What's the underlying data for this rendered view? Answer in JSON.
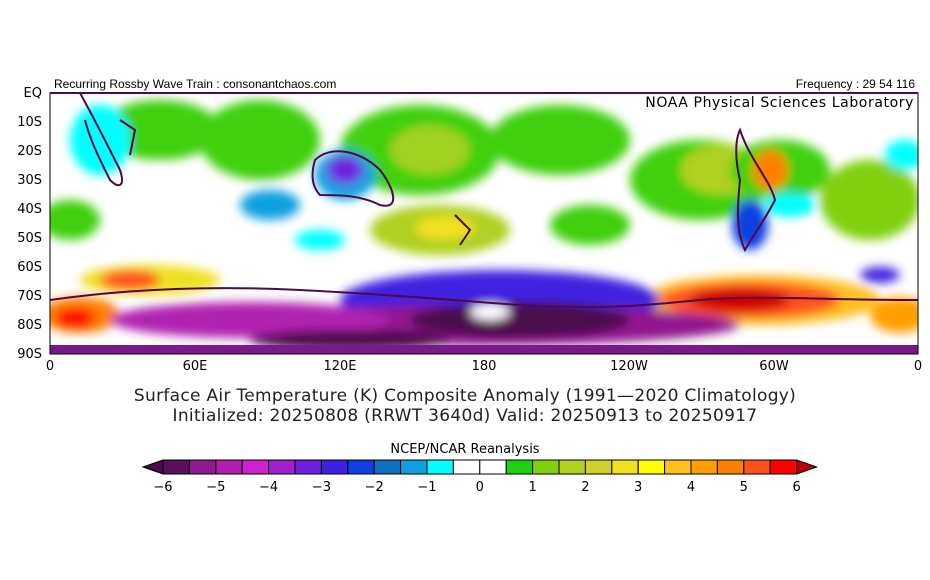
{
  "header": {
    "left": "Recurring Rossby Wave Train : consonantchaos.com",
    "right": "Frequency : 29 54 116",
    "lab": "NOAA Physical Sciences Laboratory"
  },
  "map": {
    "lat_labels": [
      "EQ",
      "10S",
      "20S",
      "30S",
      "40S",
      "50S",
      "60S",
      "70S",
      "80S",
      "90S"
    ],
    "lon_labels": [
      "0",
      "60E",
      "120E",
      "180",
      "120W",
      "60W",
      "0"
    ]
  },
  "title": {
    "line1": "Surface Air Temperature (K) Composite Anomaly (1991—2020 Climatology)",
    "line2": "Initialized: 20250808 (RRWT 3640d) Valid: 20250913 to 20250917"
  },
  "colorbar": {
    "label": "NCEP/NCAR Reanalysis",
    "ticks": [
      "-6",
      "-5",
      "-4",
      "-3",
      "-2",
      "-1",
      "0",
      "1",
      "2",
      "3",
      "4",
      "5",
      "6"
    ],
    "under_color": "#4b0a4b",
    "over_color": "#c00000",
    "colors": [
      "#5a105a",
      "#901890",
      "#b020b0",
      "#d020d0",
      "#a020d0",
      "#7020e0",
      "#4020e0",
      "#1040e0",
      "#1070c0",
      "#10a0e0",
      "#00ffff",
      "#ffffff",
      "#ffffff",
      "#20d010",
      "#80d010",
      "#b0d020",
      "#d0d030",
      "#f0e020",
      "#ffff00",
      "#ffc020",
      "#ffa000",
      "#ff8000",
      "#ff5020",
      "#ff0000"
    ]
  }
}
